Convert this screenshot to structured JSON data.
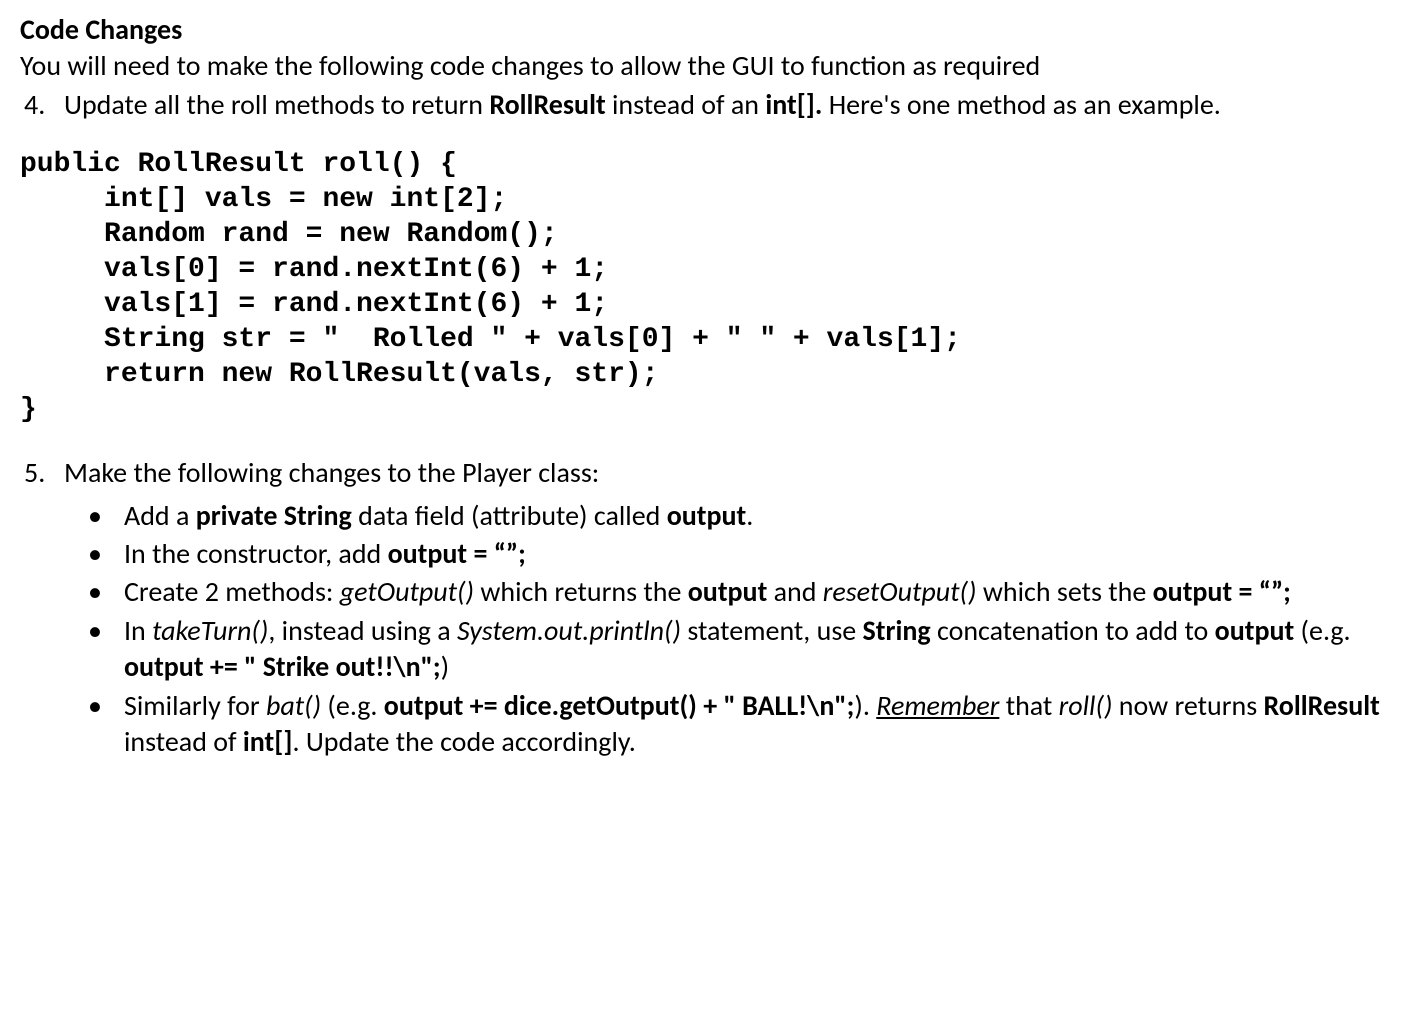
{
  "heading": "Code Changes",
  "intro": "You will need to make the following code changes to allow the GUI to function as required",
  "item4": {
    "num": "4.",
    "pre": "Update all the roll methods to return ",
    "bold1": "RollResult",
    "mid": " instead of an ",
    "bold2": "int[].",
    "post": " Here's one method as an example."
  },
  "code": "public RollResult roll() {\n     int[] vals = new int[2];\n     Random rand = new Random();\n     vals[0] = rand.nextInt(6) + 1;\n     vals[1] = rand.nextInt(6) + 1;\n     String str = \"  Rolled \" + vals[0] + \" \" + vals[1];\n     return new RollResult(vals, str);\n}",
  "item5": {
    "num": "5.",
    "text": "Make the following changes to the Player class:"
  },
  "bullets": {
    "mark": "•",
    "b1": {
      "t1": "Add a ",
      "bold1": "private String",
      "t2": " data field (attribute) called ",
      "bold2": "output",
      "t3": "."
    },
    "b2": {
      "t1": "In the constructor, add ",
      "bold1": "output = “”;"
    },
    "b3": {
      "t1": "Create 2 methods: ",
      "it1": "getOutput()",
      "t2": " which returns the ",
      "bold1": "output",
      "t3": " and ",
      "it2": "resetOutput()",
      "t4": " which sets the ",
      "bold2": "output = “”;"
    },
    "b4": {
      "t1": "In ",
      "it1": "takeTurn()",
      "t2": ", instead using a ",
      "it2": "System.out.println()",
      "t3": " statement, use ",
      "bold1": "String",
      "t4": " concatenation to add to ",
      "bold2": "output",
      "t5": " (e.g. ",
      "bold3": "output += \"  Strike out!!\\n\";",
      "t6": ")"
    },
    "b5": {
      "t1": "Similarly for ",
      "it1": "bat()",
      "t2": " (e.g. ",
      "bold1": "output += dice.getOutput() + \" BALL!\\n\";",
      "t3": "). ",
      "ui1": "Remember",
      "t4": " that ",
      "it2": "roll()",
      "t5": " now returns ",
      "bold2": "RollResult",
      "t6": " instead of ",
      "bold3": "int[]",
      "t7": ". Update the code accordingly."
    }
  }
}
